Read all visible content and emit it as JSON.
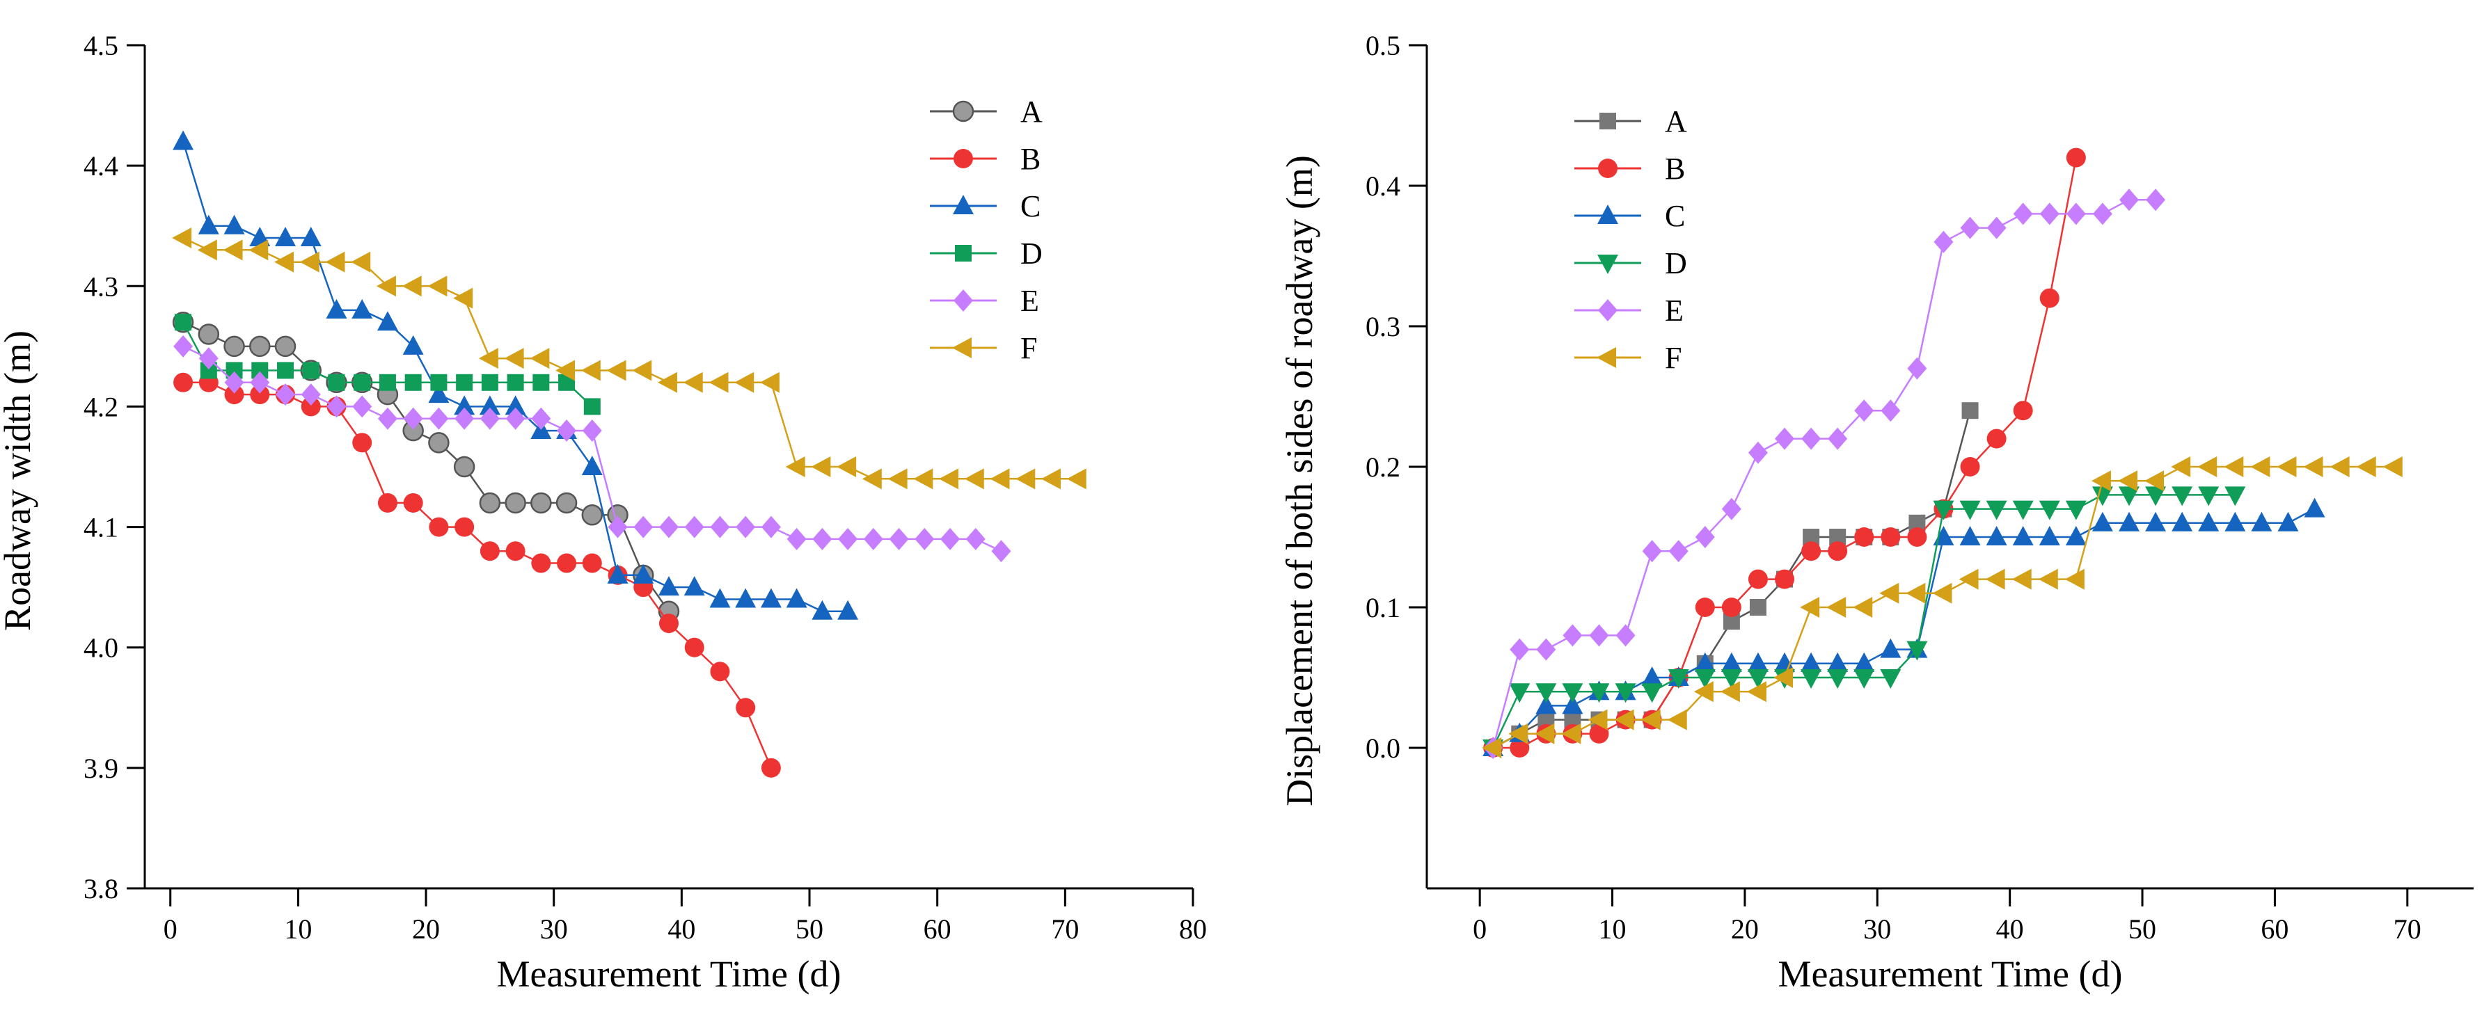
{
  "chart_data": [
    {
      "type": "line",
      "xlabel": "Measurement Time (d)",
      "ylabel": "Roadway width (m)",
      "xlim": [
        -2,
        80
      ],
      "ylim": [
        3.8,
        4.5
      ],
      "xticks": [
        0,
        10,
        20,
        30,
        40,
        50,
        60,
        70,
        80
      ],
      "yticks": [
        3.8,
        3.9,
        4.0,
        4.1,
        4.2,
        4.3,
        4.4,
        4.5
      ],
      "xtick_labels": [
        "0",
        "10",
        "20",
        "30",
        "40",
        "50",
        "60",
        "70",
        "80"
      ],
      "ytick_labels": [
        "3.8",
        "3.9",
        "4.0",
        "4.1",
        "4.2",
        "4.3",
        "4.4",
        "4.5"
      ],
      "grid": false,
      "legend_position": "top-right",
      "series": [
        {
          "name": "A",
          "color": "#555555",
          "marker": "circle-gray",
          "x": [
            1,
            3,
            5,
            7,
            9,
            11,
            13,
            15,
            17,
            19,
            21,
            23,
            25,
            27,
            29,
            31,
            33,
            35,
            37,
            39
          ],
          "y": [
            4.27,
            4.26,
            4.25,
            4.25,
            4.25,
            4.23,
            4.22,
            4.22,
            4.21,
            4.18,
            4.17,
            4.15,
            4.12,
            4.12,
            4.12,
            4.12,
            4.11,
            4.11,
            4.06,
            4.03
          ]
        },
        {
          "name": "B",
          "color": "#ee3333",
          "marker": "circle",
          "x": [
            1,
            3,
            5,
            7,
            9,
            11,
            13,
            15,
            17,
            19,
            21,
            23,
            25,
            27,
            29,
            31,
            33,
            35,
            37,
            39,
            41,
            43,
            45,
            47
          ],
          "y": [
            4.22,
            4.22,
            4.21,
            4.21,
            4.21,
            4.2,
            4.2,
            4.17,
            4.12,
            4.12,
            4.1,
            4.1,
            4.08,
            4.08,
            4.07,
            4.07,
            4.07,
            4.06,
            4.05,
            4.02,
            4.0,
            3.98,
            3.95,
            3.9
          ]
        },
        {
          "name": "C",
          "color": "#1565c0",
          "marker": "triangle-up",
          "x": [
            1,
            3,
            5,
            7,
            9,
            11,
            13,
            15,
            17,
            19,
            21,
            23,
            25,
            27,
            29,
            31,
            33,
            35,
            37,
            39,
            41,
            43,
            45,
            47,
            49,
            51,
            53
          ],
          "y": [
            4.42,
            4.35,
            4.35,
            4.34,
            4.34,
            4.34,
            4.28,
            4.28,
            4.27,
            4.25,
            4.21,
            4.2,
            4.2,
            4.2,
            4.18,
            4.18,
            4.15,
            4.06,
            4.06,
            4.05,
            4.05,
            4.04,
            4.04,
            4.04,
            4.04,
            4.03,
            4.03
          ]
        },
        {
          "name": "D",
          "color": "#0f9d58",
          "marker": "square",
          "x": [
            1,
            3,
            5,
            7,
            9,
            11,
            13,
            15,
            17,
            19,
            21,
            23,
            25,
            27,
            29,
            31,
            33
          ],
          "y": [
            4.27,
            4.23,
            4.23,
            4.23,
            4.23,
            4.23,
            4.22,
            4.22,
            4.22,
            4.22,
            4.22,
            4.22,
            4.22,
            4.22,
            4.22,
            4.22,
            4.2
          ]
        },
        {
          "name": "E",
          "color": "#c77dff",
          "marker": "diamond",
          "x": [
            1,
            3,
            5,
            7,
            9,
            11,
            13,
            15,
            17,
            19,
            21,
            23,
            25,
            27,
            29,
            31,
            33,
            35,
            37,
            39,
            41,
            43,
            45,
            47,
            49,
            51,
            53,
            55,
            57,
            59,
            61,
            63,
            65
          ],
          "y": [
            4.25,
            4.24,
            4.22,
            4.22,
            4.21,
            4.21,
            4.2,
            4.2,
            4.19,
            4.19,
            4.19,
            4.19,
            4.19,
            4.19,
            4.19,
            4.18,
            4.18,
            4.1,
            4.1,
            4.1,
            4.1,
            4.1,
            4.1,
            4.1,
            4.09,
            4.09,
            4.09,
            4.09,
            4.09,
            4.09,
            4.09,
            4.09,
            4.08
          ]
        },
        {
          "name": "F",
          "color": "#d4a017",
          "marker": "triangle-left",
          "x": [
            1,
            3,
            5,
            7,
            9,
            11,
            13,
            15,
            17,
            19,
            21,
            23,
            25,
            27,
            29,
            31,
            33,
            35,
            37,
            39,
            41,
            43,
            45,
            47,
            49,
            51,
            53,
            55,
            57,
            59,
            61,
            63,
            65,
            67,
            69,
            71
          ],
          "y": [
            4.34,
            4.33,
            4.33,
            4.33,
            4.32,
            4.32,
            4.32,
            4.32,
            4.3,
            4.3,
            4.3,
            4.29,
            4.24,
            4.24,
            4.24,
            4.23,
            4.23,
            4.23,
            4.23,
            4.22,
            4.22,
            4.22,
            4.22,
            4.22,
            4.15,
            4.15,
            4.15,
            4.14,
            4.14,
            4.14,
            4.14,
            4.14,
            4.14,
            4.14,
            4.14,
            4.14
          ]
        }
      ]
    },
    {
      "type": "line",
      "xlabel": "Measurement Time (d)",
      "ylabel": "Displacement of both sides of roadway (m)",
      "xlim": [
        -4,
        75
      ],
      "ylim": [
        -0.1,
        0.5
      ],
      "xticks": [
        0,
        10,
        20,
        30,
        40,
        50,
        60,
        70
      ],
      "yticks": [
        0.0,
        0.1,
        0.2,
        0.3,
        0.4,
        0.5
      ],
      "xtick_labels": [
        "0",
        "10",
        "20",
        "30",
        "40",
        "50",
        "60",
        "70"
      ],
      "ytick_labels": [
        "0.0",
        "0.1",
        "0.2",
        "0.3",
        "0.4",
        "0.5"
      ],
      "grid": false,
      "legend_position": "top-left",
      "series": [
        {
          "name": "A",
          "color": "#555555",
          "marker": "square-gray",
          "x": [
            1,
            3,
            5,
            7,
            9,
            11,
            13,
            15,
            17,
            19,
            21,
            23,
            25,
            27,
            29,
            31,
            33,
            35,
            37
          ],
          "y": [
            0.0,
            0.01,
            0.02,
            0.02,
            0.02,
            0.02,
            0.02,
            0.05,
            0.06,
            0.09,
            0.1,
            0.12,
            0.15,
            0.15,
            0.15,
            0.15,
            0.16,
            0.17,
            0.24
          ]
        },
        {
          "name": "B",
          "color": "#ee3333",
          "marker": "circle",
          "x": [
            1,
            3,
            5,
            7,
            9,
            11,
            13,
            15,
            17,
            19,
            21,
            23,
            25,
            27,
            29,
            31,
            33,
            35,
            37,
            39,
            41,
            43,
            45
          ],
          "y": [
            0.0,
            0.0,
            0.01,
            0.01,
            0.01,
            0.02,
            0.02,
            0.05,
            0.1,
            0.1,
            0.12,
            0.12,
            0.14,
            0.14,
            0.15,
            0.15,
            0.15,
            0.17,
            0.2,
            0.22,
            0.24,
            0.32,
            0.42
          ]
        },
        {
          "name": "C",
          "color": "#1565c0",
          "marker": "triangle-up",
          "x": [
            1,
            3,
            5,
            7,
            9,
            11,
            13,
            15,
            17,
            19,
            21,
            23,
            25,
            27,
            29,
            31,
            33,
            35,
            37,
            39,
            41,
            43,
            45,
            47,
            49,
            51,
            53,
            55,
            57,
            59,
            61,
            63
          ],
          "y": [
            0.0,
            0.01,
            0.03,
            0.03,
            0.04,
            0.04,
            0.05,
            0.05,
            0.06,
            0.06,
            0.06,
            0.06,
            0.06,
            0.06,
            0.06,
            0.07,
            0.07,
            0.15,
            0.15,
            0.15,
            0.15,
            0.15,
            0.15,
            0.16,
            0.16,
            0.16,
            0.16,
            0.16,
            0.16,
            0.16,
            0.16,
            0.17
          ]
        },
        {
          "name": "D",
          "color": "#0f9d58",
          "marker": "triangle-down",
          "x": [
            1,
            3,
            5,
            7,
            9,
            11,
            13,
            15,
            17,
            19,
            21,
            23,
            25,
            27,
            29,
            31,
            33,
            35,
            37,
            39,
            41,
            43,
            45,
            47,
            49,
            51,
            53,
            55,
            57
          ],
          "y": [
            0.0,
            0.04,
            0.04,
            0.04,
            0.04,
            0.04,
            0.04,
            0.05,
            0.05,
            0.05,
            0.05,
            0.05,
            0.05,
            0.05,
            0.05,
            0.05,
            0.07,
            0.17,
            0.17,
            0.17,
            0.17,
            0.17,
            0.17,
            0.18,
            0.18,
            0.18,
            0.18,
            0.18,
            0.18
          ]
        },
        {
          "name": "E",
          "color": "#c77dff",
          "marker": "diamond",
          "x": [
            1,
            3,
            5,
            7,
            9,
            11,
            13,
            15,
            17,
            19,
            21,
            23,
            25,
            27,
            29,
            31,
            33,
            35,
            37,
            39,
            41,
            43,
            45,
            47,
            49,
            51
          ],
          "y": [
            0.0,
            0.07,
            0.07,
            0.08,
            0.08,
            0.08,
            0.14,
            0.14,
            0.15,
            0.17,
            0.21,
            0.22,
            0.22,
            0.22,
            0.24,
            0.24,
            0.27,
            0.36,
            0.37,
            0.37,
            0.38,
            0.38,
            0.38,
            0.38,
            0.39,
            0.39
          ]
        },
        {
          "name": "F",
          "color": "#d4a017",
          "marker": "triangle-left",
          "x": [
            1,
            3,
            5,
            7,
            9,
            11,
            13,
            15,
            17,
            19,
            21,
            23,
            25,
            27,
            29,
            31,
            33,
            35,
            37,
            39,
            41,
            43,
            45,
            47,
            49,
            51,
            53,
            55,
            57,
            59,
            61,
            63,
            65,
            67,
            69
          ],
          "y": [
            0.0,
            0.01,
            0.01,
            0.01,
            0.02,
            0.02,
            0.02,
            0.02,
            0.04,
            0.04,
            0.04,
            0.05,
            0.1,
            0.1,
            0.1,
            0.11,
            0.11,
            0.11,
            0.12,
            0.12,
            0.12,
            0.12,
            0.12,
            0.19,
            0.19,
            0.19,
            0.2,
            0.2,
            0.2,
            0.2,
            0.2,
            0.2,
            0.2,
            0.2,
            0.2
          ]
        }
      ]
    }
  ]
}
